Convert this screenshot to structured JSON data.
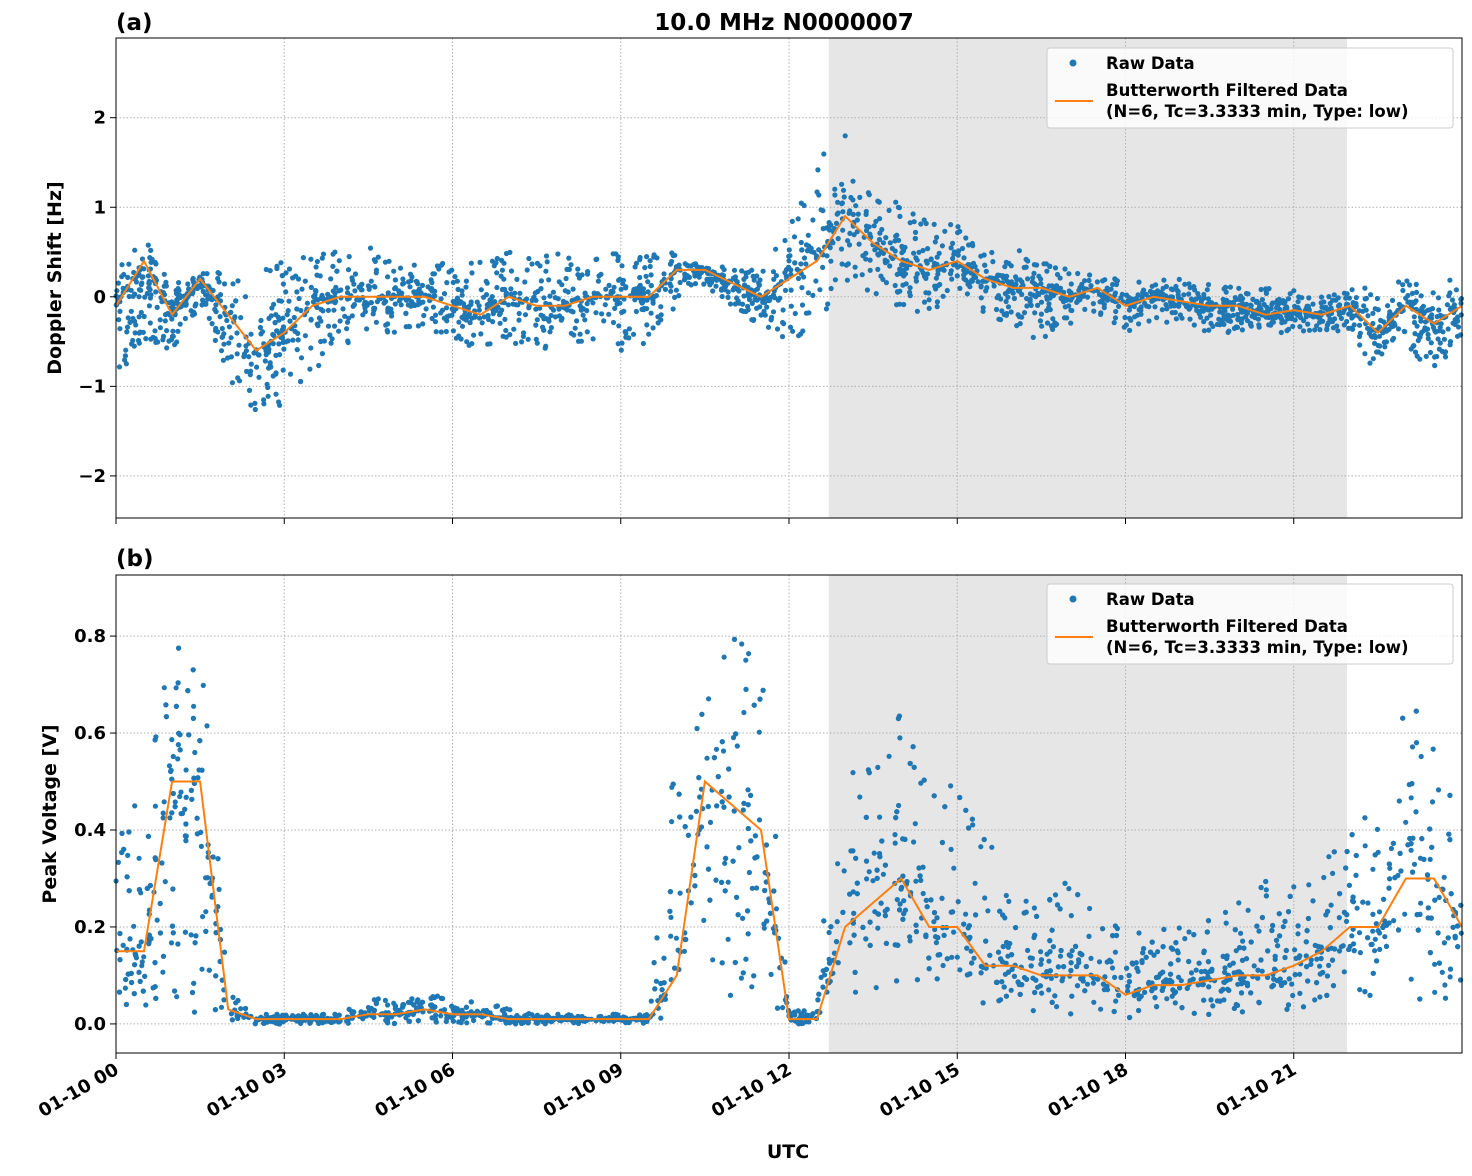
{
  "chart_data": [
    {
      "type": "scatter",
      "panel_label": "(a)",
      "title": "10.0 MHz N0000007",
      "xlabel": "",
      "ylabel": "Doppler Shift [Hz]",
      "x_unit": "hours UTC on 01-10",
      "xlim": [
        0,
        24
      ],
      "ylim": [
        -2.47,
        2.89
      ],
      "yticks": [
        -2,
        -1,
        0,
        1,
        2
      ],
      "ytick_labels": [
        "−2",
        "−1",
        "0",
        "1",
        "2"
      ],
      "grid": true,
      "shaded_interval": [
        12.71,
        21.95
      ],
      "legend_placement": "top-right",
      "legend": [
        "Raw Data",
        "Butterworth Filtered Data",
        "(N=6, Tc=3.3333 min, Type: low)"
      ],
      "x": [
        0,
        0.5,
        1,
        1.5,
        2,
        2.5,
        3,
        3.5,
        4,
        4.5,
        5,
        5.5,
        6,
        6.5,
        7,
        7.5,
        8,
        8.5,
        9,
        9.5,
        10,
        10.5,
        11,
        11.5,
        12,
        12.5,
        13,
        13.5,
        14,
        14.5,
        15,
        15.5,
        16,
        16.5,
        17,
        17.5,
        18,
        18.5,
        19,
        19.5,
        20,
        20.5,
        21,
        21.5,
        22,
        22.5,
        23,
        23.5,
        24
      ],
      "series": [
        {
          "name": "Butterworth Filtered Data",
          "kind": "line",
          "color": "#ff7f0e",
          "values": [
            -0.1,
            0.4,
            -0.2,
            0.2,
            -0.2,
            -0.6,
            -0.4,
            -0.1,
            0.0,
            0.0,
            0.0,
            0.0,
            -0.1,
            -0.2,
            0.0,
            -0.1,
            -0.1,
            0.0,
            0.0,
            0.0,
            0.3,
            0.3,
            0.15,
            0.0,
            0.2,
            0.4,
            0.9,
            0.6,
            0.4,
            0.3,
            0.4,
            0.2,
            0.1,
            0.1,
            0.0,
            0.1,
            -0.1,
            0.0,
            -0.05,
            -0.1,
            -0.1,
            -0.2,
            -0.15,
            -0.2,
            -0.1,
            -0.4,
            -0.1,
            -0.3,
            -0.1
          ]
        },
        {
          "name": "Raw Data",
          "kind": "scatter-envelope",
          "color": "#1f77b4",
          "low": [
            -0.9,
            -0.5,
            -0.6,
            -0.1,
            -0.9,
            -1.3,
            -1.2,
            -0.9,
            -0.6,
            -0.5,
            -0.4,
            -0.4,
            -0.5,
            -0.6,
            -0.5,
            -0.6,
            -0.6,
            -0.5,
            -0.6,
            -0.6,
            -0.1,
            0.1,
            -0.1,
            -0.4,
            -0.5,
            -0.4,
            0.2,
            0.0,
            -0.2,
            -0.3,
            0.0,
            -0.2,
            -0.4,
            -0.5,
            -0.3,
            -0.2,
            -0.4,
            -0.3,
            -0.3,
            -0.4,
            -0.4,
            -0.4,
            -0.4,
            -0.4,
            -0.4,
            -0.9,
            -0.6,
            -0.8,
            -0.5
          ],
          "high": [
            0.4,
            0.65,
            0.2,
            0.3,
            0.3,
            0.3,
            0.4,
            0.5,
            0.5,
            0.6,
            0.4,
            0.4,
            0.4,
            0.4,
            0.5,
            0.5,
            0.5,
            0.5,
            0.5,
            0.5,
            0.5,
            0.4,
            0.3,
            0.3,
            0.8,
            1.5,
            2.0,
            1.3,
            1.0,
            0.9,
            0.8,
            0.5,
            0.6,
            0.4,
            0.3,
            0.3,
            0.2,
            0.2,
            0.2,
            0.15,
            0.1,
            0.1,
            0.1,
            0.0,
            0.1,
            0.1,
            0.2,
            0.1,
            0.4
          ]
        }
      ]
    },
    {
      "type": "scatter",
      "panel_label": "(b)",
      "title": "",
      "xlabel": "UTC",
      "ylabel": "Peak Voltage [V]",
      "x_unit": "hours UTC on 01-10",
      "xlim": [
        0,
        24
      ],
      "ylim": [
        -0.06,
        0.926
      ],
      "yticks": [
        0.0,
        0.2,
        0.4,
        0.6,
        0.8
      ],
      "ytick_labels": [
        "0.0",
        "0.2",
        "0.4",
        "0.6",
        "0.8"
      ],
      "xticks": [
        0,
        3,
        6,
        9,
        12,
        15,
        18,
        21
      ],
      "xtick_labels": [
        "01-10 00",
        "01-10 03",
        "01-10 06",
        "01-10 09",
        "01-10 12",
        "01-10 15",
        "01-10 18",
        "01-10 21"
      ],
      "grid": true,
      "shaded_interval": [
        12.71,
        21.95
      ],
      "legend_placement": "top-right",
      "legend": [
        "Raw Data",
        "Butterworth Filtered Data",
        "(N=6, Tc=3.3333 min, Type: low)"
      ],
      "x": [
        0,
        0.5,
        1,
        1.5,
        2,
        2.5,
        3,
        3.5,
        4,
        4.5,
        5,
        5.5,
        6,
        6.5,
        7,
        7.5,
        8,
        8.5,
        9,
        9.5,
        10,
        10.5,
        11,
        11.5,
        12,
        12.5,
        13,
        13.5,
        14,
        14.5,
        15,
        15.5,
        16,
        16.5,
        17,
        17.5,
        18,
        18.5,
        19,
        19.5,
        20,
        20.5,
        21,
        21.5,
        22,
        22.5,
        23,
        23.5,
        24
      ],
      "series": [
        {
          "name": "Butterworth Filtered Data",
          "kind": "line",
          "color": "#ff7f0e",
          "values": [
            0.15,
            0.15,
            0.5,
            0.5,
            0.03,
            0.01,
            0.01,
            0.01,
            0.01,
            0.02,
            0.02,
            0.03,
            0.02,
            0.02,
            0.01,
            0.01,
            0.01,
            0.01,
            0.01,
            0.01,
            0.1,
            0.5,
            0.45,
            0.4,
            0.01,
            0.01,
            0.2,
            0.25,
            0.3,
            0.2,
            0.2,
            0.12,
            0.12,
            0.1,
            0.1,
            0.1,
            0.06,
            0.08,
            0.08,
            0.09,
            0.1,
            0.1,
            0.12,
            0.15,
            0.2,
            0.2,
            0.3,
            0.3,
            0.2
          ]
        },
        {
          "name": "Raw Data",
          "kind": "scatter-envelope",
          "color": "#1f77b4",
          "low": [
            0.05,
            0.02,
            0.05,
            0.0,
            0.01,
            0.0,
            0.0,
            0.0,
            0.0,
            0.0,
            0.0,
            0.0,
            0.0,
            0.0,
            0.0,
            0.0,
            0.0,
            0.0,
            0.0,
            0.0,
            0.0,
            0.1,
            0.05,
            0.0,
            0.0,
            0.0,
            0.0,
            0.05,
            0.05,
            0.05,
            0.05,
            0.03,
            0.03,
            0.02,
            0.02,
            0.02,
            0.01,
            0.01,
            0.01,
            0.01,
            0.01,
            0.01,
            0.02,
            0.03,
            0.05,
            0.05,
            0.05,
            0.05,
            0.05
          ],
          "high": [
            0.4,
            0.5,
            0.85,
            0.85,
            0.07,
            0.02,
            0.02,
            0.02,
            0.02,
            0.06,
            0.05,
            0.08,
            0.04,
            0.05,
            0.03,
            0.02,
            0.02,
            0.02,
            0.02,
            0.02,
            0.6,
            0.85,
            0.8,
            0.8,
            0.03,
            0.03,
            0.8,
            0.6,
            0.65,
            0.5,
            0.5,
            0.4,
            0.3,
            0.25,
            0.3,
            0.25,
            0.2,
            0.2,
            0.2,
            0.22,
            0.25,
            0.3,
            0.3,
            0.35,
            0.4,
            0.45,
            0.7,
            0.6,
            0.45
          ]
        }
      ]
    }
  ]
}
